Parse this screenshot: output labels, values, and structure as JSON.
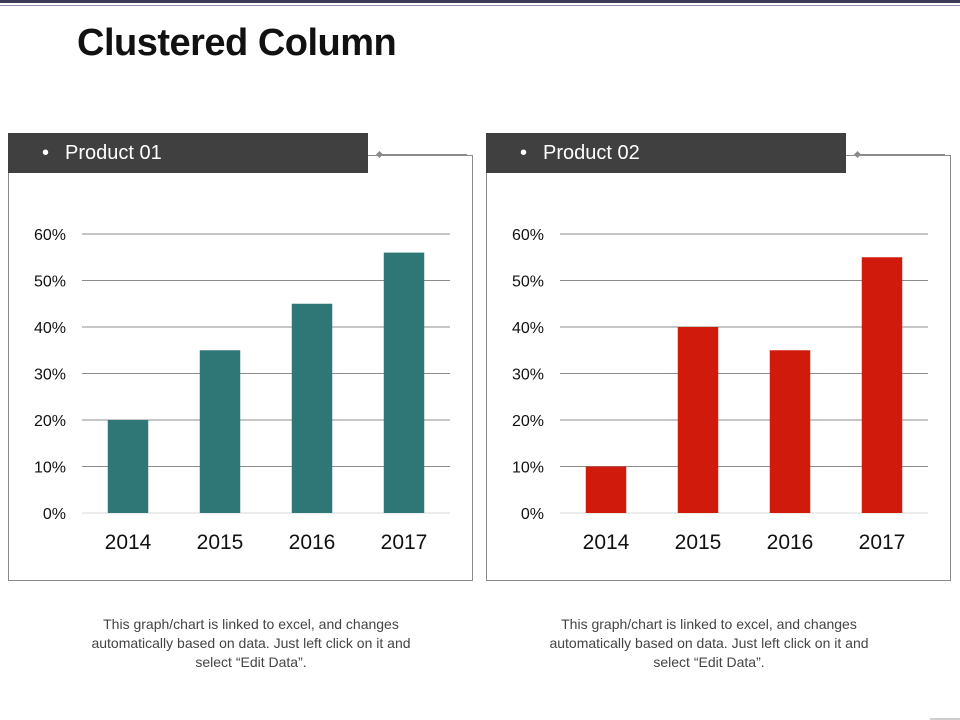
{
  "slide": {
    "title": "Clustered Column"
  },
  "panels": [
    {
      "header": "Product 01",
      "bullet": "•",
      "caption_lines": [
        "This graph/chart is linked to excel, and changes",
        "automatically based on data. Just left click on it and",
        "select “Edit Data”."
      ]
    },
    {
      "header": "Product 02",
      "bullet": "•",
      "caption_lines": [
        "This graph/chart is linked to excel, and changes",
        "automatically based on data. Just left click on it and",
        "select “Edit Data”."
      ]
    }
  ],
  "chart_data": [
    {
      "type": "bar",
      "title": "Product 01",
      "categories": [
        "2014",
        "2015",
        "2016",
        "2017"
      ],
      "values": [
        20,
        35,
        45,
        56
      ],
      "ylim": [
        0,
        60
      ],
      "yticks": [
        0,
        10,
        20,
        30,
        40,
        50,
        60
      ],
      "ytick_labels": [
        "0%",
        "10%",
        "20%",
        "30%",
        "40%",
        "50%",
        "60%"
      ],
      "color": "#2e7776",
      "xlabel": "",
      "ylabel": "",
      "grid": true,
      "legend": "none"
    },
    {
      "type": "bar",
      "title": "Product 02",
      "categories": [
        "2014",
        "2015",
        "2016",
        "2017"
      ],
      "values": [
        10,
        40,
        35,
        55
      ],
      "ylim": [
        0,
        60
      ],
      "yticks": [
        0,
        10,
        20,
        30,
        40,
        50,
        60
      ],
      "ytick_labels": [
        "0%",
        "10%",
        "20%",
        "30%",
        "40%",
        "50%",
        "60%"
      ],
      "color": "#d01a0b",
      "xlabel": "",
      "ylabel": "",
      "grid": true,
      "legend": "none"
    }
  ]
}
